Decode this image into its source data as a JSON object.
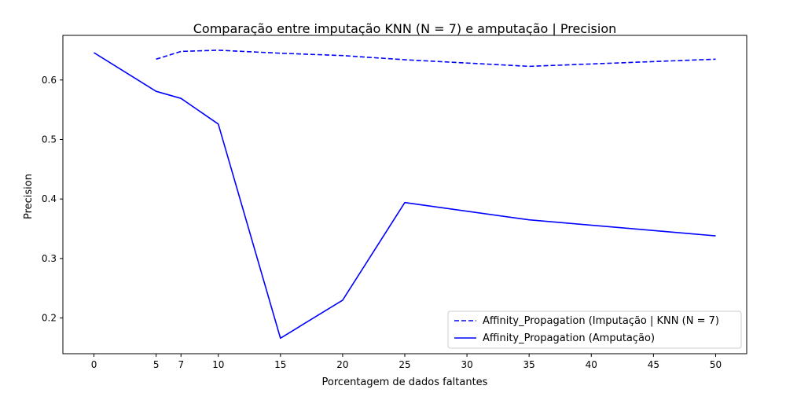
{
  "chart_data": {
    "type": "line",
    "title": "Comparação entre imputação KNN (N = 7) e amputação | Precision",
    "xlabel": "Porcentagem de dados faltantes",
    "ylabel": "Precision",
    "xlim": [
      -2.5,
      52.5
    ],
    "ylim": [
      0.14,
      0.675
    ],
    "xticks": [
      0,
      5,
      7,
      10,
      15,
      20,
      25,
      30,
      35,
      40,
      45,
      50
    ],
    "yticks": [
      0.2,
      0.3,
      0.4,
      0.5,
      0.6
    ],
    "ytick_labels": [
      "0.2",
      "0.3",
      "0.4",
      "0.5",
      "0.6"
    ],
    "grid": false,
    "legend_position": "lower-right",
    "series": [
      {
        "name": "Affinity_Propagation (Imputação | KNN (N = 7)",
        "color": "#0000ff",
        "style": "dashed",
        "x": [
          5,
          7,
          10,
          15,
          20,
          25,
          35,
          50
        ],
        "y": [
          0.635,
          0.648,
          0.65,
          0.645,
          0.641,
          0.634,
          0.623,
          0.635
        ]
      },
      {
        "name": "Affinity_Propagation (Amputação)",
        "color": "#0000ff",
        "style": "solid",
        "x": [
          0,
          5,
          7,
          10,
          15,
          20,
          25,
          35,
          50
        ],
        "y": [
          0.646,
          0.581,
          0.569,
          0.526,
          0.166,
          0.23,
          0.394,
          0.365,
          0.338
        ]
      }
    ]
  }
}
